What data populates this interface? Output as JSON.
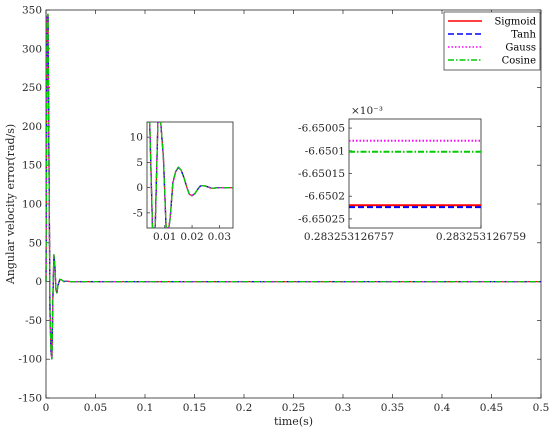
{
  "chart_data": [
    {
      "type": "line",
      "xlabel": "time(s)",
      "ylabel": "Angular velocity error(rad/s)",
      "xlim": [
        0,
        0.5
      ],
      "ylim": [
        -150,
        350
      ],
      "xticks": [
        "0",
        "0.05",
        "0.1",
        "0.15",
        "0.2",
        "0.25",
        "0.3",
        "0.35",
        "0.4",
        "0.45",
        "0.5"
      ],
      "yticks": [
        "-150",
        "-100",
        "-50",
        "0",
        "50",
        "100",
        "150",
        "200",
        "250",
        "300",
        "350"
      ],
      "legend_position": "top-right",
      "series": [
        {
          "name": "Sigmoid",
          "color": "#ff0000",
          "style": "solid"
        },
        {
          "name": "Tanh",
          "color": "#0000ff",
          "style": "dashed"
        },
        {
          "name": "Gauss",
          "color": "#ff00ff",
          "style": "dotted"
        },
        {
          "name": "Cosine",
          "color": "#00cc00",
          "style": "dashdot"
        }
      ],
      "x": [
        0,
        0.001,
        0.002,
        0.003,
        0.004,
        0.005,
        0.006,
        0.007,
        0.008,
        0.009,
        0.01,
        0.011,
        0.012,
        0.014,
        0.016,
        0.018,
        0.02,
        0.025,
        0.03,
        0.04,
        0.05,
        0.1,
        0.2,
        0.3,
        0.4,
        0.5
      ],
      "values": [
        0,
        340,
        345,
        150,
        -40,
        -90,
        -100,
        -20,
        35,
        20,
        -10,
        -15,
        -5,
        3,
        2,
        0,
        0.5,
        0,
        0,
        0,
        0,
        0,
        0,
        0,
        0,
        0
      ]
    },
    {
      "type": "line",
      "xlim": [
        0.0035,
        0.035
      ],
      "ylim": [
        -8,
        13
      ],
      "xticks": [
        "0.01",
        "0.02",
        "0.03"
      ],
      "yticks": [
        "-5",
        "0",
        "5",
        "10"
      ],
      "x": [
        0.0035,
        0.0045,
        0.0055,
        0.0065,
        0.0075,
        0.0085,
        0.0095,
        0.0105,
        0.0115,
        0.012,
        0.013,
        0.014,
        0.015,
        0.016,
        0.017,
        0.018,
        0.019,
        0.02,
        0.021,
        0.022,
        0.023,
        0.024,
        0.025,
        0.026,
        0.027,
        0.028,
        0.03,
        0.032,
        0.035
      ],
      "values": [
        13,
        13,
        -8,
        -8,
        13,
        13,
        6,
        -8,
        -8,
        -6,
        1,
        3.2,
        4,
        3.5,
        2,
        0.2,
        -1.3,
        -1.6,
        -1.2,
        -0.4,
        0.3,
        0.4,
        0.3,
        0.1,
        -0.1,
        -0.1,
        0,
        0,
        0
      ]
    },
    {
      "type": "line",
      "exponent_label": "×10⁻³",
      "xticks": [
        "0.283253126757",
        "0.283253126759"
      ],
      "yticks": [
        "-6.65005",
        "-6.6501",
        "-6.65015",
        "-6.6502",
        "-6.65025"
      ],
      "ylim": [
        -6.65027,
        -6.65003
      ],
      "series": [
        {
          "name": "Sigmoid",
          "value": -6.65022,
          "color": "#ff0000",
          "style": "solid"
        },
        {
          "name": "Tanh",
          "value": -6.650224,
          "color": "#0000ff",
          "style": "dashed"
        },
        {
          "name": "Gauss",
          "value": -6.650078,
          "color": "#ff00ff",
          "style": "dotted"
        },
        {
          "name": "Cosine",
          "value": -6.650102,
          "color": "#00cc00",
          "style": "dashdot"
        }
      ]
    }
  ]
}
